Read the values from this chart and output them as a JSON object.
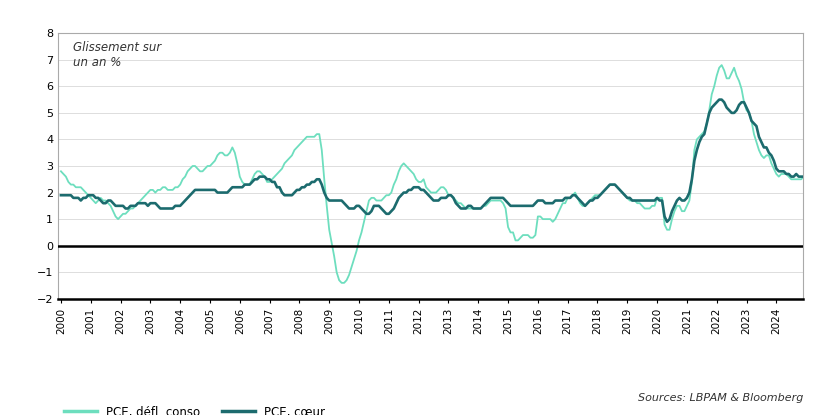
{
  "title_ylabel": "Glissement sur\nun an %",
  "ylim": [
    -2,
    8
  ],
  "yticks": [
    -2,
    -1,
    0,
    1,
    2,
    3,
    4,
    5,
    6,
    7,
    8
  ],
  "source_text": "Sources: LBPAM & Bloomberg",
  "legend_pce": "PCE, défl. conso.",
  "legend_core": "PCE, cœur",
  "color_pce": "#6DDEBE",
  "color_core": "#1C6B6E",
  "background_color": "#FFFFFF",
  "border_color": "#AAAAAA",
  "grid_color": "#DDDDDD",
  "xtick_years": [
    2000,
    2001,
    2002,
    2003,
    2004,
    2005,
    2006,
    2007,
    2008,
    2009,
    2010,
    2011,
    2012,
    2013,
    2014,
    2015,
    2016,
    2017,
    2018,
    2019,
    2020,
    2021,
    2022,
    2023,
    2024
  ],
  "pce_data": [
    2.8,
    2.7,
    2.6,
    2.4,
    2.3,
    2.3,
    2.2,
    2.2,
    2.2,
    2.1,
    2.0,
    1.9,
    1.8,
    1.7,
    1.6,
    1.7,
    1.8,
    1.7,
    1.7,
    1.6,
    1.5,
    1.3,
    1.1,
    1.0,
    1.1,
    1.2,
    1.2,
    1.3,
    1.4,
    1.4,
    1.5,
    1.6,
    1.7,
    1.8,
    1.9,
    2.0,
    2.1,
    2.1,
    2.0,
    2.1,
    2.1,
    2.2,
    2.2,
    2.1,
    2.1,
    2.1,
    2.2,
    2.2,
    2.3,
    2.5,
    2.6,
    2.8,
    2.9,
    3.0,
    3.0,
    2.9,
    2.8,
    2.8,
    2.9,
    3.0,
    3.0,
    3.1,
    3.2,
    3.4,
    3.5,
    3.5,
    3.4,
    3.4,
    3.5,
    3.7,
    3.5,
    3.1,
    2.6,
    2.4,
    2.3,
    2.3,
    2.3,
    2.5,
    2.7,
    2.8,
    2.8,
    2.7,
    2.6,
    2.4,
    2.4,
    2.5,
    2.6,
    2.7,
    2.8,
    2.9,
    3.1,
    3.2,
    3.3,
    3.4,
    3.6,
    3.7,
    3.8,
    3.9,
    4.0,
    4.1,
    4.1,
    4.1,
    4.1,
    4.2,
    4.2,
    3.6,
    2.5,
    1.5,
    0.6,
    0.1,
    -0.4,
    -1.0,
    -1.3,
    -1.4,
    -1.4,
    -1.3,
    -1.1,
    -0.8,
    -0.5,
    -0.2,
    0.2,
    0.5,
    0.9,
    1.3,
    1.7,
    1.8,
    1.8,
    1.7,
    1.7,
    1.7,
    1.8,
    1.9,
    1.9,
    2.0,
    2.3,
    2.5,
    2.8,
    3.0,
    3.1,
    3.0,
    2.9,
    2.8,
    2.7,
    2.5,
    2.4,
    2.4,
    2.5,
    2.2,
    2.1,
    2.0,
    2.0,
    2.0,
    2.1,
    2.2,
    2.2,
    2.1,
    1.9,
    1.9,
    1.8,
    1.7,
    1.6,
    1.6,
    1.5,
    1.4,
    1.4,
    1.4,
    1.4,
    1.4,
    1.4,
    1.4,
    1.5,
    1.5,
    1.6,
    1.7,
    1.7,
    1.7,
    1.7,
    1.7,
    1.6,
    1.4,
    0.7,
    0.5,
    0.5,
    0.2,
    0.2,
    0.3,
    0.4,
    0.4,
    0.4,
    0.3,
    0.3,
    0.4,
    1.1,
    1.1,
    1.0,
    1.0,
    1.0,
    1.0,
    0.9,
    1.0,
    1.2,
    1.4,
    1.6,
    1.6,
    1.8,
    1.8,
    1.9,
    2.0,
    1.8,
    1.6,
    1.5,
    1.5,
    1.6,
    1.7,
    1.8,
    1.9,
    1.9,
    1.9,
    2.0,
    2.1,
    2.2,
    2.3,
    2.3,
    2.3,
    2.2,
    2.1,
    2.0,
    1.9,
    1.8,
    1.7,
    1.7,
    1.7,
    1.6,
    1.6,
    1.5,
    1.4,
    1.4,
    1.4,
    1.5,
    1.5,
    1.8,
    1.8,
    1.8,
    0.8,
    0.6,
    0.6,
    1.0,
    1.3,
    1.5,
    1.5,
    1.3,
    1.3,
    1.5,
    1.7,
    2.4,
    3.6,
    4.0,
    4.1,
    4.2,
    4.3,
    4.6,
    5.1,
    5.7,
    6.0,
    6.4,
    6.7,
    6.8,
    6.6,
    6.3,
    6.3,
    6.5,
    6.7,
    6.4,
    6.2,
    5.9,
    5.4,
    5.1,
    5.0,
    4.7,
    4.2,
    3.9,
    3.6,
    3.4,
    3.3,
    3.4,
    3.4,
    3.1,
    2.9,
    2.7,
    2.6,
    2.7,
    2.7,
    2.7,
    2.6,
    2.5,
    2.5,
    2.5,
    2.5,
    2.5,
    2.6
  ],
  "core_data": [
    1.9,
    1.9,
    1.9,
    1.9,
    1.9,
    1.8,
    1.8,
    1.8,
    1.7,
    1.8,
    1.8,
    1.9,
    1.9,
    1.9,
    1.8,
    1.8,
    1.7,
    1.6,
    1.6,
    1.7,
    1.7,
    1.6,
    1.5,
    1.5,
    1.5,
    1.5,
    1.4,
    1.4,
    1.5,
    1.5,
    1.5,
    1.6,
    1.6,
    1.6,
    1.6,
    1.5,
    1.6,
    1.6,
    1.6,
    1.5,
    1.4,
    1.4,
    1.4,
    1.4,
    1.4,
    1.4,
    1.5,
    1.5,
    1.5,
    1.6,
    1.7,
    1.8,
    1.9,
    2.0,
    2.1,
    2.1,
    2.1,
    2.1,
    2.1,
    2.1,
    2.1,
    2.1,
    2.1,
    2.0,
    2.0,
    2.0,
    2.0,
    2.0,
    2.1,
    2.2,
    2.2,
    2.2,
    2.2,
    2.2,
    2.3,
    2.3,
    2.3,
    2.4,
    2.5,
    2.5,
    2.6,
    2.6,
    2.6,
    2.5,
    2.5,
    2.4,
    2.4,
    2.2,
    2.2,
    2.0,
    1.9,
    1.9,
    1.9,
    1.9,
    2.0,
    2.1,
    2.1,
    2.2,
    2.2,
    2.3,
    2.3,
    2.4,
    2.4,
    2.5,
    2.5,
    2.3,
    2.0,
    1.8,
    1.7,
    1.7,
    1.7,
    1.7,
    1.7,
    1.7,
    1.6,
    1.5,
    1.4,
    1.4,
    1.4,
    1.5,
    1.5,
    1.4,
    1.3,
    1.2,
    1.2,
    1.3,
    1.5,
    1.5,
    1.5,
    1.4,
    1.3,
    1.2,
    1.2,
    1.3,
    1.4,
    1.6,
    1.8,
    1.9,
    2.0,
    2.0,
    2.1,
    2.1,
    2.2,
    2.2,
    2.2,
    2.1,
    2.1,
    2.0,
    1.9,
    1.8,
    1.7,
    1.7,
    1.7,
    1.8,
    1.8,
    1.8,
    1.9,
    1.9,
    1.8,
    1.6,
    1.5,
    1.4,
    1.4,
    1.4,
    1.5,
    1.5,
    1.4,
    1.4,
    1.4,
    1.4,
    1.5,
    1.6,
    1.7,
    1.8,
    1.8,
    1.8,
    1.8,
    1.8,
    1.8,
    1.7,
    1.6,
    1.5,
    1.5,
    1.5,
    1.5,
    1.5,
    1.5,
    1.5,
    1.5,
    1.5,
    1.5,
    1.6,
    1.7,
    1.7,
    1.7,
    1.6,
    1.6,
    1.6,
    1.6,
    1.7,
    1.7,
    1.7,
    1.7,
    1.8,
    1.8,
    1.8,
    1.9,
    1.9,
    1.8,
    1.7,
    1.6,
    1.5,
    1.6,
    1.7,
    1.7,
    1.8,
    1.8,
    1.9,
    2.0,
    2.1,
    2.2,
    2.3,
    2.3,
    2.3,
    2.2,
    2.1,
    2.0,
    1.9,
    1.8,
    1.8,
    1.7,
    1.7,
    1.7,
    1.7,
    1.7,
    1.7,
    1.7,
    1.7,
    1.7,
    1.7,
    1.8,
    1.7,
    1.7,
    1.1,
    0.9,
    1.0,
    1.3,
    1.5,
    1.7,
    1.8,
    1.7,
    1.7,
    1.8,
    2.0,
    2.5,
    3.2,
    3.6,
    3.9,
    4.1,
    4.2,
    4.6,
    5.0,
    5.2,
    5.3,
    5.4,
    5.5,
    5.5,
    5.4,
    5.2,
    5.1,
    5.0,
    5.0,
    5.1,
    5.3,
    5.4,
    5.4,
    5.2,
    5.0,
    4.7,
    4.6,
    4.5,
    4.1,
    3.9,
    3.7,
    3.7,
    3.5,
    3.4,
    3.2,
    2.9,
    2.8,
    2.8,
    2.8,
    2.7,
    2.7,
    2.6,
    2.6,
    2.7,
    2.6,
    2.6,
    2.6
  ]
}
